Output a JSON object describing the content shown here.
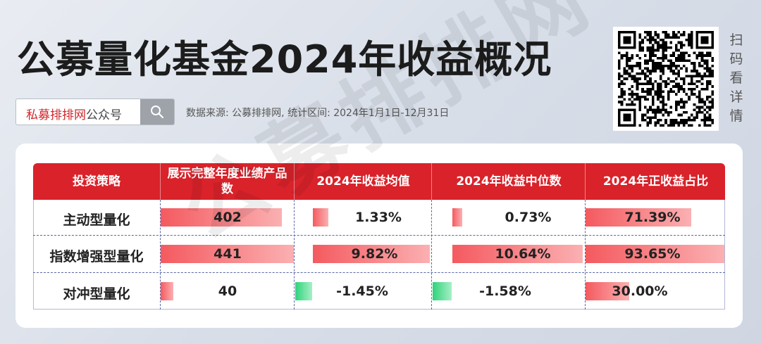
{
  "title": "公募量化基金2024年收益概况",
  "search": {
    "brand": "私募排排网",
    "suffix": "公众号"
  },
  "source": "数据来源: 公募排排网, 统计区间: 2024年1月1日-12月31日",
  "qr_caption": [
    "扫",
    "码",
    "看",
    "详",
    "情"
  ],
  "watermark": "公募排排网",
  "colors": {
    "header": "#d9222a",
    "positive_bar": "#f45a5f",
    "negative_bar": "#2fd37a"
  },
  "table": {
    "headers": [
      "投资策略",
      "展示完整年度业绩产品数",
      "2024年收益均值",
      "2024年收益中位数",
      "2024年正收益占比"
    ],
    "rows": [
      {
        "strategy": "主动型量化",
        "count": "402",
        "mean": "1.33%",
        "median": "0.73%",
        "positive": "71.39%"
      },
      {
        "strategy": "指数增强型量化",
        "count": "441",
        "mean": "9.82%",
        "median": "10.64%",
        "positive": "93.65%"
      },
      {
        "strategy": "对冲型量化",
        "count": "40",
        "mean": "-1.45%",
        "median": "-1.58%",
        "positive": "30.00%"
      }
    ]
  }
}
